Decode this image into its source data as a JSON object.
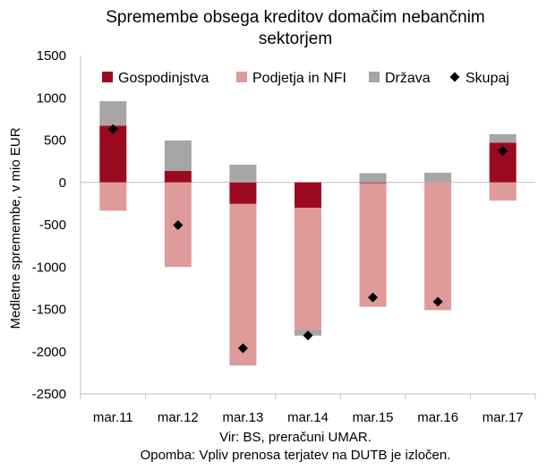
{
  "title": "Spremembe obsega kreditov domačim nebančnim sektorjem",
  "source": "Vir: BS, preračuni UMAR.",
  "note": "Opomba: Vpliv prenosa terjatev na DUTB je izločen.",
  "chart_data": {
    "type": "bar",
    "stacked": true,
    "title": "Spremembe obsega kreditov domačim nebančnim sektorjem",
    "ylabel": "Medletne spremembe, v mio EUR",
    "xlabel": "",
    "ylim": [
      -2500,
      1500
    ],
    "yticks": [
      -2500,
      -2000,
      -1500,
      -1000,
      -500,
      0,
      500,
      1000,
      1500
    ],
    "ytick_labels": [
      "-2500",
      "-2000",
      "-1500",
      "-1000",
      "-500",
      "0",
      "500",
      "1000",
      "1500"
    ],
    "categories": [
      "mar.11",
      "mar.12",
      "mar.13",
      "mar.14",
      "mar.15",
      "mar.16",
      "mar.17"
    ],
    "legend_position": "top",
    "series": [
      {
        "name": "Gospodinjstva",
        "kind": "bar",
        "color": "#9b0a1e",
        "values": [
          670,
          135,
          -255,
          -300,
          -10,
          0,
          470
        ]
      },
      {
        "name": "Podjetja in NFI",
        "kind": "bar",
        "color": "#df9a9a",
        "values": [
          -335,
          -1000,
          -1910,
          -1440,
          -1460,
          -1510,
          -215
        ]
      },
      {
        "name": "Država",
        "kind": "bar",
        "color": "#a6a6a6",
        "values": [
          290,
          360,
          210,
          -70,
          110,
          115,
          100
        ]
      },
      {
        "name": "Skupaj",
        "kind": "marker",
        "color": "#000000",
        "values": [
          630,
          -505,
          -1960,
          -1810,
          -1360,
          -1410,
          370
        ]
      }
    ]
  }
}
